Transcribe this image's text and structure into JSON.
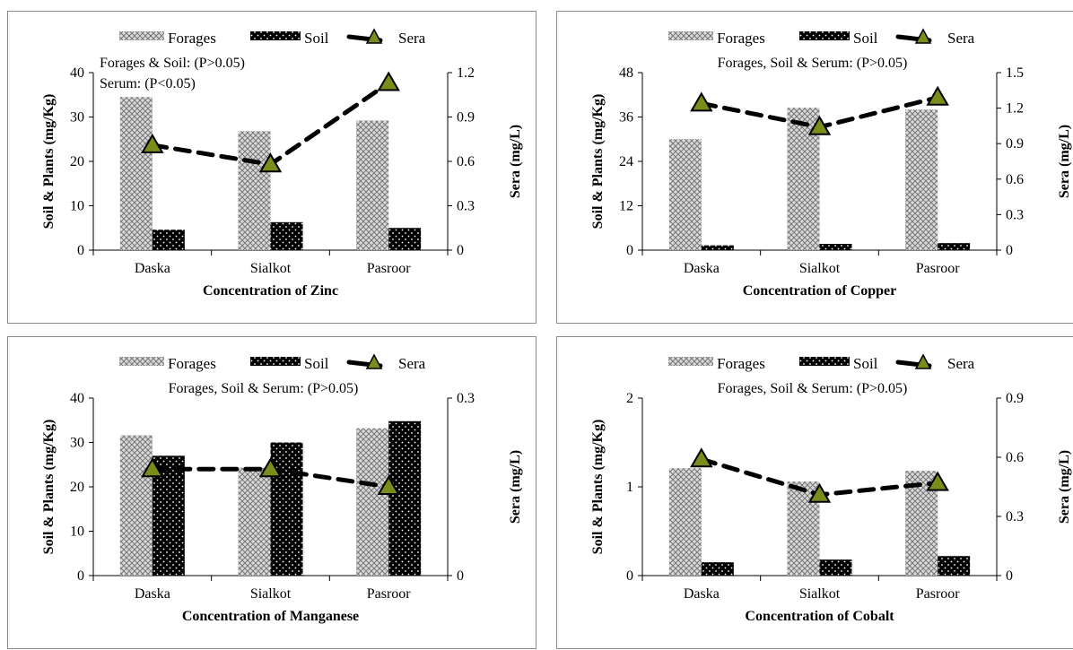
{
  "legend": {
    "forages": "Forages",
    "soil": "Soil",
    "sera": "Sera"
  },
  "colors": {
    "forages_fill": "#d9d9d9",
    "forages_pattern": "#777777",
    "soil_fill": "#000000",
    "soil_dots": "#ffffff",
    "sera_line": "#000000",
    "sera_marker": "#7a8c1a"
  },
  "chart_data": [
    {
      "type": "bar",
      "title": "",
      "xlabel": "Concentration of Zinc",
      "ylabel": "Soil & Plants (mg/Kg)",
      "y2label": "Sera (mg/L)",
      "categories": [
        "Daska",
        "Sialkot",
        "Pasroor"
      ],
      "ylim": [
        0,
        40
      ],
      "yticks": [
        "0",
        "10",
        "20",
        "30",
        "40"
      ],
      "y2lim": [
        0,
        1.2
      ],
      "y2ticks": [
        "0",
        "0.3",
        "0.6",
        "0.9",
        "1.2"
      ],
      "series": [
        {
          "name": "Forages",
          "type": "bar",
          "values": [
            34.5,
            26.8,
            29.2
          ]
        },
        {
          "name": "Soil",
          "type": "bar",
          "values": [
            4.6,
            6.3,
            5.0
          ]
        },
        {
          "name": "Sera",
          "type": "line",
          "axis": "right",
          "values": [
            0.71,
            0.58,
            1.13
          ]
        }
      ],
      "annotations": [
        "Forages & Soil: (P>0.05)",
        "Serum: (P<0.05)"
      ]
    },
    {
      "type": "bar",
      "title": "",
      "xlabel": "Concentration of Copper",
      "ylabel": "Soil & Plants (mg/Kg)",
      "y2label": "Sera (mg/L)",
      "categories": [
        "Daska",
        "Sialkot",
        "Pasroor"
      ],
      "ylim": [
        0,
        48
      ],
      "yticks": [
        "0",
        "12",
        "24",
        "36",
        "48"
      ],
      "y2lim": [
        0,
        1.5
      ],
      "y2ticks": [
        "0",
        "0.3",
        "0.6",
        "0.9",
        "1.2",
        "1.5"
      ],
      "series": [
        {
          "name": "Forages",
          "type": "bar",
          "values": [
            30.0,
            38.5,
            38.0
          ]
        },
        {
          "name": "Soil",
          "type": "bar",
          "values": [
            1.3,
            1.7,
            1.9
          ]
        },
        {
          "name": "Sera",
          "type": "line",
          "axis": "right",
          "values": [
            1.24,
            1.04,
            1.29
          ]
        }
      ],
      "annotations": [
        "Forages, Soil & Serum: (P>0.05)"
      ]
    },
    {
      "type": "bar",
      "title": "",
      "xlabel": "Concentration of Manganese",
      "ylabel": "Soil & Plants (mg/Kg)",
      "y2label": "Sera (mg/L)",
      "categories": [
        "Daska",
        "Sialkot",
        "Pasroor"
      ],
      "ylim": [
        0,
        40
      ],
      "yticks": [
        "0",
        "10",
        "20",
        "30",
        "40"
      ],
      "y2lim": [
        0,
        0.3
      ],
      "y2ticks": [
        "0",
        "0.3"
      ],
      "series": [
        {
          "name": "Forages",
          "type": "bar",
          "values": [
            31.6,
            24.3,
            33.2
          ]
        },
        {
          "name": "Soil",
          "type": "bar",
          "values": [
            27.0,
            30.0,
            34.8
          ]
        },
        {
          "name": "Sera",
          "type": "line",
          "axis": "right",
          "values": [
            0.18,
            0.18,
            0.15
          ]
        }
      ],
      "annotations": [
        "Forages, Soil & Serum: (P>0.05)"
      ]
    },
    {
      "type": "bar",
      "title": "",
      "xlabel": "Concentration of Cobalt",
      "ylabel": "Soil & Plants (mg/Kg)",
      "y2label": "Sera (mg/L)",
      "categories": [
        "Daska",
        "Sialkot",
        "Pasroor"
      ],
      "ylim": [
        0,
        2
      ],
      "yticks": [
        "0",
        "1",
        "2"
      ],
      "y2lim": [
        0,
        0.9
      ],
      "y2ticks": [
        "0",
        "0.3",
        "0.6",
        "0.9"
      ],
      "series": [
        {
          "name": "Forages",
          "type": "bar",
          "values": [
            1.21,
            1.06,
            1.18
          ]
        },
        {
          "name": "Soil",
          "type": "bar",
          "values": [
            0.15,
            0.18,
            0.22
          ]
        },
        {
          "name": "Sera",
          "type": "line",
          "axis": "right",
          "values": [
            0.59,
            0.41,
            0.47
          ]
        }
      ],
      "annotations": [
        "Forages, Soil & Serum: (P>0.05)"
      ]
    }
  ]
}
